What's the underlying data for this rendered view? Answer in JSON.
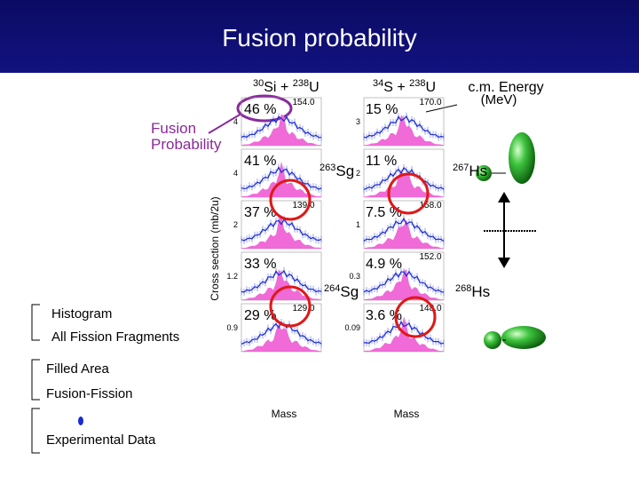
{
  "title": "Fusion probability",
  "reaction_left": {
    "projectile_mass": "30",
    "projectile": "Si",
    "plus": "+",
    "target_mass": "238",
    "target": "U"
  },
  "reaction_right": {
    "projectile_mass": "34",
    "projectile": "S",
    "plus": "+",
    "target_mass": "238",
    "target": "U"
  },
  "energy_label": {
    "line1": "c.m. Energy",
    "line2": "(MeV)"
  },
  "fusion_probability_label": {
    "line1": "Fusion",
    "line2": "Probability"
  },
  "y_axis_label": "Cross section (mb/2u)",
  "x_axis_labels": [
    "Mass",
    "Mass"
  ],
  "rows": [
    {
      "left_percent": "46 %",
      "left_energy": "154.0",
      "left_tick": "4",
      "right_percent": "15 %",
      "right_energy": "170.0",
      "right_tick": "3"
    },
    {
      "left_percent": "41 %",
      "left_energy": "",
      "left_tick": "4",
      "right_percent": "11 %",
      "right_energy": "",
      "right_tick": "2"
    },
    {
      "left_percent": "37 %",
      "left_energy": "139.0",
      "left_tick": "2",
      "right_percent": "7.5 %",
      "right_energy": "158.0",
      "right_tick": "1"
    },
    {
      "left_percent": "33 %",
      "left_energy": "",
      "left_tick": "1.2",
      "right_percent": "4.9 %",
      "right_energy": "152.0",
      "right_tick": "0.3"
    },
    {
      "left_percent": "29 %",
      "left_energy": "129.0",
      "left_tick": "0.9",
      "right_percent": "3.6 %",
      "right_energy": "148.0",
      "right_tick": "0.09"
    }
  ],
  "nuclei": [
    {
      "mass": "263",
      "symbol": "Sg"
    },
    {
      "mass": "267",
      "symbol": "Hs"
    },
    {
      "mass": "264",
      "symbol": "Sg"
    },
    {
      "mass": "268",
      "symbol": "Hs"
    }
  ],
  "legend": {
    "histogram": "Histogram",
    "histogram_desc": "All Fission Fragments",
    "filled": "Filled Area",
    "filled_desc": "Fusion-Fission",
    "points_desc": "Experimental Data"
  }
}
